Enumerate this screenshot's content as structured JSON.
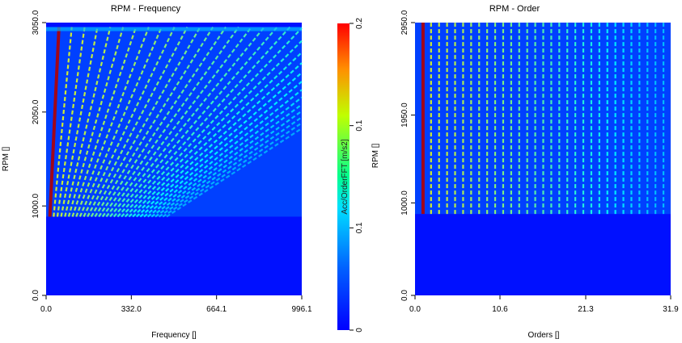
{
  "chart_data": [
    {
      "type": "heatmap",
      "title": "RPM - Frequency",
      "xlabel": "Frequency []",
      "ylabel": "RPM []",
      "xlim": [
        0.0,
        996.1
      ],
      "ylim": [
        0.0,
        3050.0
      ],
      "x_ticks": [
        "0.0",
        "332.0",
        "664.1",
        "996.1"
      ],
      "y_ticks": [
        "0.0",
        "1000.0",
        "2050.0",
        "3050.0"
      ],
      "x_tick_values": [
        0.0,
        332.0,
        664.1,
        996.1
      ],
      "y_tick_values": [
        0.0,
        1000.0,
        2050.0,
        3050.0
      ],
      "data_start_rpm": 880,
      "background_value": 0.0,
      "orders_visible": 32,
      "fundamental_order_strength": "high (red) at 1st order",
      "colormap": "jet"
    },
    {
      "type": "heatmap",
      "title": "RPM - Order",
      "xlabel": "Orders []",
      "ylabel": "RPM []",
      "xlim": [
        0.0,
        31.9
      ],
      "ylim": [
        0.0,
        2950.0
      ],
      "x_ticks": [
        "0.0",
        "10.6",
        "21.3",
        "31.9"
      ],
      "y_ticks": [
        "0.0",
        "1000.0",
        "1950.0",
        "2950.0"
      ],
      "x_tick_values": [
        0.0,
        10.6,
        21.3,
        31.9
      ],
      "y_tick_values": [
        0.0,
        1000.0,
        1950.0,
        2950.0
      ],
      "data_start_rpm": 880,
      "background_value": 0.0,
      "colormap": "jet"
    }
  ],
  "colorbar": {
    "label": "Acc/OrderFFT [m/s2]",
    "ticks": [
      "0.2",
      "0.1",
      "0.1",
      "0"
    ],
    "tick_values": [
      0.2,
      0.15,
      0.1,
      0
    ],
    "range": [
      0,
      0.2
    ],
    "colors": [
      "#0000ff",
      "#0080ff",
      "#00ffff",
      "#00ff80",
      "#ffff00",
      "#ff8000",
      "#ff0000"
    ]
  }
}
